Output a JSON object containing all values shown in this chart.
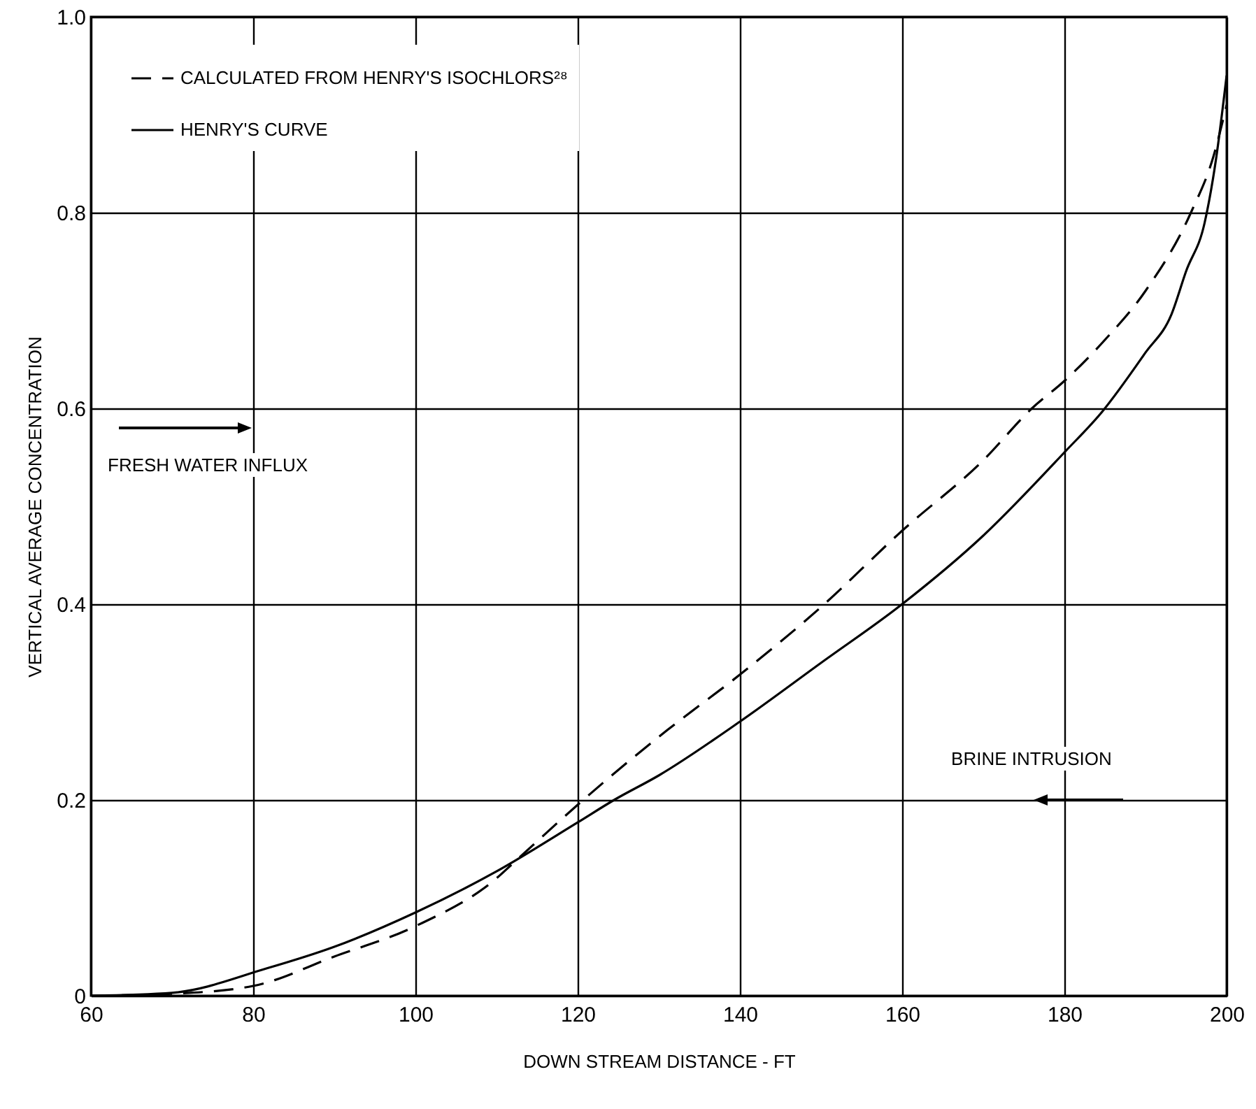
{
  "chart_data": {
    "type": "line",
    "xlabel": "DOWN STREAM DISTANCE - FT",
    "ylabel": "VERTICAL AVERAGE CONCENTRATION",
    "xlim": [
      60,
      200
    ],
    "xticks": [
      60,
      80,
      100,
      120,
      140,
      160,
      180,
      200
    ],
    "ylim": [
      0,
      1
    ],
    "yticks": [
      0,
      0.2,
      0.4,
      0.6,
      0.8,
      {
        "value": 1,
        "label": "1.0"
      }
    ],
    "grid": true,
    "legend": "top left",
    "marker": "none",
    "annotations": [
      "FRESH WATER INFLUX",
      "BRINE INTRUSION"
    ],
    "series": [
      {
        "name": "CALCULATED FROM HENRY'S ISOCHLORS²⁸",
        "color": "#000000",
        "line_style": "dashed",
        "x": [
          60,
          70,
          80,
          90,
          100,
          110,
          112,
          120,
          124.2,
          131,
          140,
          150,
          160,
          170,
          176,
          180,
          185,
          190,
          195.6,
          198.4,
          200
        ],
        "values": [
          0,
          0.002,
          0.01,
          0.04,
          0.071,
          0.12,
          0.135,
          0.195,
          0.225,
          0.271,
          0.328,
          0.397,
          0.475,
          0.547,
          0.6,
          0.628,
          0.67,
          0.72,
          0.8,
          0.858,
          0.91
        ]
      },
      {
        "name": "HENRY'S CURVE",
        "color": "#000000",
        "line_style": "solid",
        "x": [
          60,
          70,
          81.7,
          90,
          100,
          110,
          120,
          124.5,
          130,
          140,
          150,
          160,
          170,
          180,
          184.7,
          190,
          193.2,
          195,
          197.3,
          198.7,
          200
        ],
        "values": [
          0,
          0.003,
          0.028,
          0.05,
          0.085,
          0.127,
          0.177,
          0.2,
          0.225,
          0.28,
          0.34,
          0.4,
          0.47,
          0.555,
          0.597,
          0.657,
          0.696,
          0.74,
          0.79,
          0.855,
          0.94
        ]
      }
    ]
  }
}
